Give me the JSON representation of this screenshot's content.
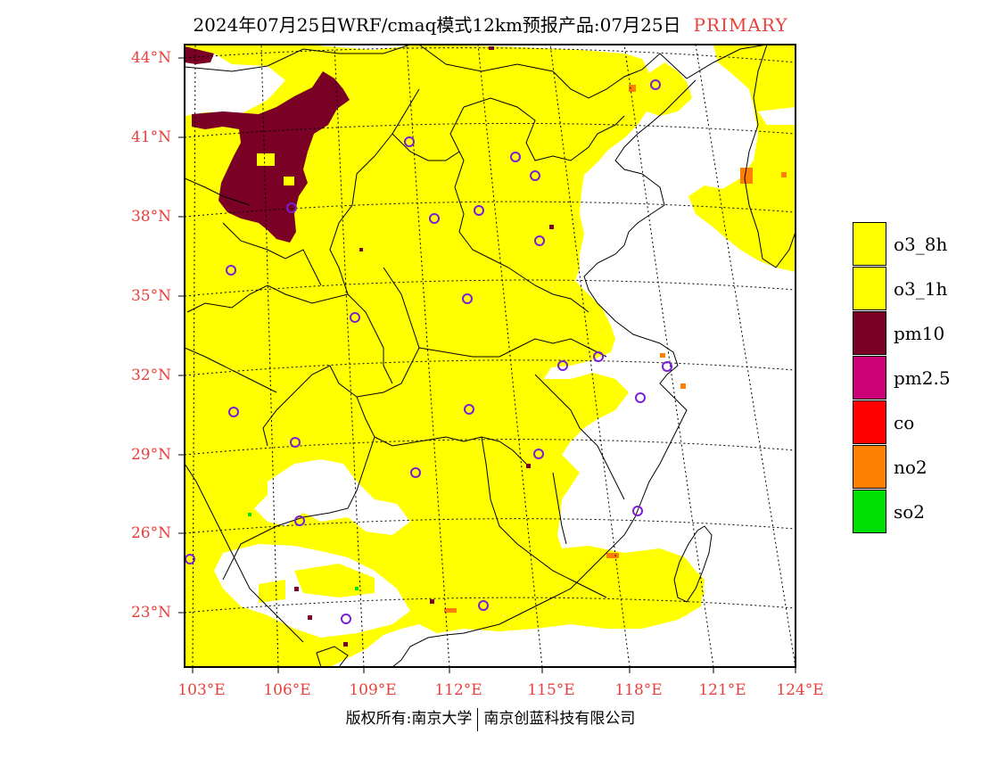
{
  "title": {
    "text": "2024年07月25日WRF/cmaq模式12km预报产品:07月25日",
    "tag": "PRIMARY"
  },
  "map": {
    "lat_labels": [
      "44°N",
      "41°N",
      "38°N",
      "35°N",
      "32°N",
      "29°N",
      "26°N",
      "23°N"
    ],
    "lon_labels": [
      "103°E",
      "106°E",
      "109°E",
      "112°E",
      "115°E",
      "118°E",
      "121°E",
      "124°E"
    ],
    "dominant_pollutant_note": "o3",
    "colors": {
      "o3": "#ffff00",
      "pm10": "#7a0026",
      "no2": "#ff8000",
      "so2": "#00e000",
      "station": "#7b1fd6",
      "axis_text": "#e8413c"
    }
  },
  "legend": {
    "items": [
      {
        "label": "o3_8h",
        "color": "#ffff00"
      },
      {
        "label": "o3_1h",
        "color": "#ffff00"
      },
      {
        "label": "pm10",
        "color": "#7a0026"
      },
      {
        "label": "pm2.5",
        "color": "#cc0077"
      },
      {
        "label": "co",
        "color": "#ff0000"
      },
      {
        "label": "no2",
        "color": "#ff8000"
      },
      {
        "label": "so2",
        "color": "#00e000"
      }
    ]
  },
  "footer": {
    "left": "版权所有:南京大学",
    "right": "南京创蓝科技有限公司"
  }
}
